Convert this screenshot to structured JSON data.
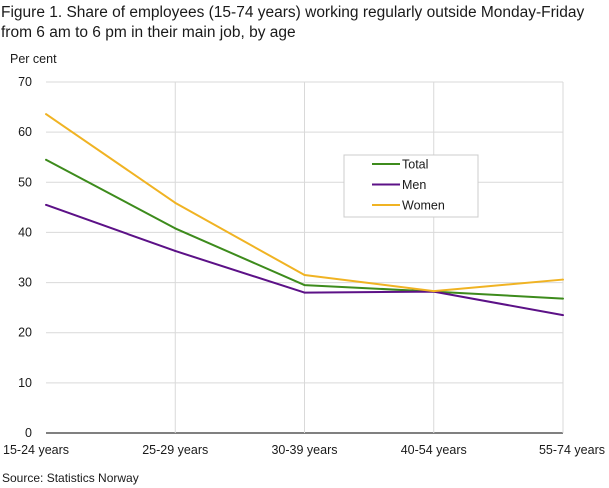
{
  "title": "Figure 1. Share of employees (15-74 years) working regularly outside Monday-Friday from 6 am to 6 pm in their main job, by age",
  "source": "Source: Statistics Norway",
  "chart_data": {
    "type": "line",
    "title": "Figure 1. Share of employees (15-74 years) working regularly outside Monday-Friday from 6 am to 6 pm in their main job, by age",
    "ylabel": "Per cent",
    "xlabel": "",
    "categories": [
      "15-24 years",
      "25-29 years",
      "30-39 years",
      "40-54 years",
      "55-74 years"
    ],
    "ylim": [
      0,
      70
    ],
    "yticks": [
      0,
      10,
      20,
      30,
      40,
      50,
      60,
      70
    ],
    "grid": true,
    "legend_position": "upper-right-center",
    "series": [
      {
        "name": "Total",
        "color": "#3d8b1c",
        "values": [
          54.5,
          40.8,
          29.5,
          28.2,
          26.8
        ]
      },
      {
        "name": "Men",
        "color": "#5c1187",
        "values": [
          45.5,
          36.3,
          28.0,
          28.2,
          23.5
        ]
      },
      {
        "name": "Women",
        "color": "#f0b323",
        "values": [
          63.6,
          45.9,
          31.5,
          28.3,
          30.6
        ]
      }
    ]
  }
}
